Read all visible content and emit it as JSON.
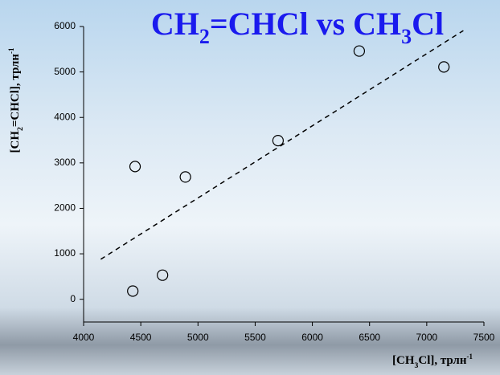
{
  "chart_data": {
    "type": "scatter",
    "title": "CH2=CHCl vs CH3Cl",
    "x_label": "[CH3Cl], трлн-1",
    "y_label": "[CH2=CHCl], трлн-1",
    "x": [
      4430,
      4450,
      4690,
      4890,
      5700,
      6410,
      7150
    ],
    "values": [
      180,
      2920,
      530,
      2690,
      3490,
      5460,
      5110
    ],
    "trendline": {
      "x": [
        4150,
        7320
      ],
      "values": [
        880,
        5910
      ],
      "color": "#000000"
    },
    "xlim": [
      4000,
      7500
    ],
    "xticks": [
      4000,
      4500,
      5000,
      5500,
      6000,
      6500,
      7000,
      7500
    ],
    "ylim": [
      -500,
      6000
    ],
    "yticks": [
      0,
      1000,
      2000,
      3000,
      4000,
      5000,
      6000
    ],
    "title_color": "#1a1aee",
    "marker_color": "#000000"
  }
}
